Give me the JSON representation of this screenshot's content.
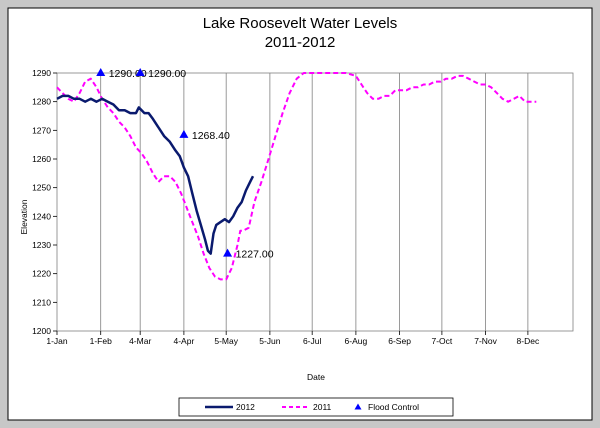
{
  "chart_data": {
    "type": "line",
    "title": "Lake Roosevelt Water Levels",
    "subtitle": "2011-2012",
    "xlabel": "Date",
    "ylabel": "Elevation",
    "ylim": [
      1200,
      1290
    ],
    "yticks": [
      1200,
      1210,
      1220,
      1230,
      1240,
      1250,
      1260,
      1270,
      1280,
      1290
    ],
    "xlim": [
      0,
      366
    ],
    "xticks": [
      {
        "day": 0,
        "label": "1-Jan"
      },
      {
        "day": 31,
        "label": "1-Feb"
      },
      {
        "day": 59,
        "label": "4-Mar"
      },
      {
        "day": 90,
        "label": "4-Apr"
      },
      {
        "day": 120,
        "label": "5-May"
      },
      {
        "day": 151,
        "label": "5-Jun"
      },
      {
        "day": 181,
        "label": "6-Jul"
      },
      {
        "day": 212,
        "label": "6-Aug"
      },
      {
        "day": 243,
        "label": "6-Sep"
      },
      {
        "day": 273,
        "label": "7-Oct"
      },
      {
        "day": 304,
        "label": "7-Nov"
      },
      {
        "day": 334,
        "label": "8-Dec"
      }
    ],
    "grid": "vertical",
    "legend_position": "bottom",
    "series": [
      {
        "name": "2012",
        "color": "#0a1a6e",
        "style": "solid",
        "points": [
          [
            0,
            1281
          ],
          [
            4,
            1282
          ],
          [
            8,
            1282
          ],
          [
            12,
            1281
          ],
          [
            16,
            1281
          ],
          [
            20,
            1280
          ],
          [
            24,
            1281
          ],
          [
            28,
            1280
          ],
          [
            32,
            1281
          ],
          [
            36,
            1280
          ],
          [
            40,
            1279
          ],
          [
            44,
            1277
          ],
          [
            48,
            1277
          ],
          [
            52,
            1276
          ],
          [
            56,
            1276
          ],
          [
            58,
            1278
          ],
          [
            62,
            1276
          ],
          [
            65,
            1276
          ],
          [
            68,
            1274
          ],
          [
            72,
            1271
          ],
          [
            76,
            1268
          ],
          [
            80,
            1266
          ],
          [
            84,
            1263
          ],
          [
            87,
            1261
          ],
          [
            90,
            1257
          ],
          [
            93,
            1254
          ],
          [
            96,
            1248
          ],
          [
            99,
            1242
          ],
          [
            102,
            1237
          ],
          [
            105,
            1232
          ],
          [
            107,
            1228
          ],
          [
            109,
            1227
          ],
          [
            111,
            1234
          ],
          [
            113,
            1237
          ],
          [
            116,
            1238
          ],
          [
            119,
            1239
          ],
          [
            122,
            1238
          ],
          [
            125,
            1240
          ],
          [
            128,
            1243
          ],
          [
            131,
            1245
          ],
          [
            134,
            1249
          ],
          [
            137,
            1252
          ],
          [
            139,
            1254
          ]
        ]
      },
      {
        "name": "2011",
        "color": "#ff00ff",
        "style": "dashed",
        "points": [
          [
            0,
            1285
          ],
          [
            4,
            1283
          ],
          [
            8,
            1281
          ],
          [
            12,
            1280
          ],
          [
            16,
            1283
          ],
          [
            20,
            1287
          ],
          [
            24,
            1288
          ],
          [
            28,
            1285
          ],
          [
            32,
            1281
          ],
          [
            36,
            1278
          ],
          [
            40,
            1276
          ],
          [
            44,
            1273
          ],
          [
            48,
            1271
          ],
          [
            52,
            1268
          ],
          [
            56,
            1264
          ],
          [
            60,
            1262
          ],
          [
            64,
            1259
          ],
          [
            68,
            1255
          ],
          [
            72,
            1252
          ],
          [
            76,
            1254
          ],
          [
            80,
            1254
          ],
          [
            84,
            1252
          ],
          [
            88,
            1248
          ],
          [
            92,
            1243
          ],
          [
            96,
            1238
          ],
          [
            100,
            1233
          ],
          [
            104,
            1227
          ],
          [
            108,
            1222
          ],
          [
            112,
            1219
          ],
          [
            116,
            1218
          ],
          [
            120,
            1218
          ],
          [
            124,
            1222
          ],
          [
            128,
            1230
          ],
          [
            130,
            1235
          ],
          [
            132,
            1235
          ],
          [
            136,
            1236
          ],
          [
            140,
            1245
          ],
          [
            145,
            1252
          ],
          [
            150,
            1260
          ],
          [
            155,
            1268
          ],
          [
            160,
            1276
          ],
          [
            165,
            1283
          ],
          [
            170,
            1288
          ],
          [
            175,
            1290
          ],
          [
            185,
            1290
          ],
          [
            195,
            1290
          ],
          [
            205,
            1290
          ],
          [
            212,
            1289
          ],
          [
            216,
            1286
          ],
          [
            220,
            1283
          ],
          [
            224,
            1281
          ],
          [
            228,
            1281
          ],
          [
            232,
            1282
          ],
          [
            236,
            1282
          ],
          [
            240,
            1284
          ],
          [
            244,
            1284
          ],
          [
            248,
            1284
          ],
          [
            252,
            1285
          ],
          [
            256,
            1285
          ],
          [
            260,
            1286
          ],
          [
            264,
            1286
          ],
          [
            268,
            1287
          ],
          [
            272,
            1287
          ],
          [
            276,
            1288
          ],
          [
            280,
            1288
          ],
          [
            284,
            1289
          ],
          [
            288,
            1289
          ],
          [
            292,
            1288
          ],
          [
            296,
            1287
          ],
          [
            300,
            1286
          ],
          [
            304,
            1286
          ],
          [
            308,
            1285
          ],
          [
            312,
            1283
          ],
          [
            316,
            1281
          ],
          [
            320,
            1280
          ],
          [
            324,
            1281
          ],
          [
            328,
            1282
          ],
          [
            332,
            1280
          ],
          [
            336,
            1280
          ],
          [
            340,
            1280
          ]
        ]
      },
      {
        "name": "Flood Control",
        "color": "#0000ff",
        "style": "marker",
        "points": [
          [
            31,
            1290,
            "1290.00"
          ],
          [
            59,
            1290,
            "1290.00"
          ],
          [
            90,
            1268.4,
            "1268.40"
          ],
          [
            121,
            1227,
            "1227.00"
          ]
        ]
      }
    ]
  }
}
